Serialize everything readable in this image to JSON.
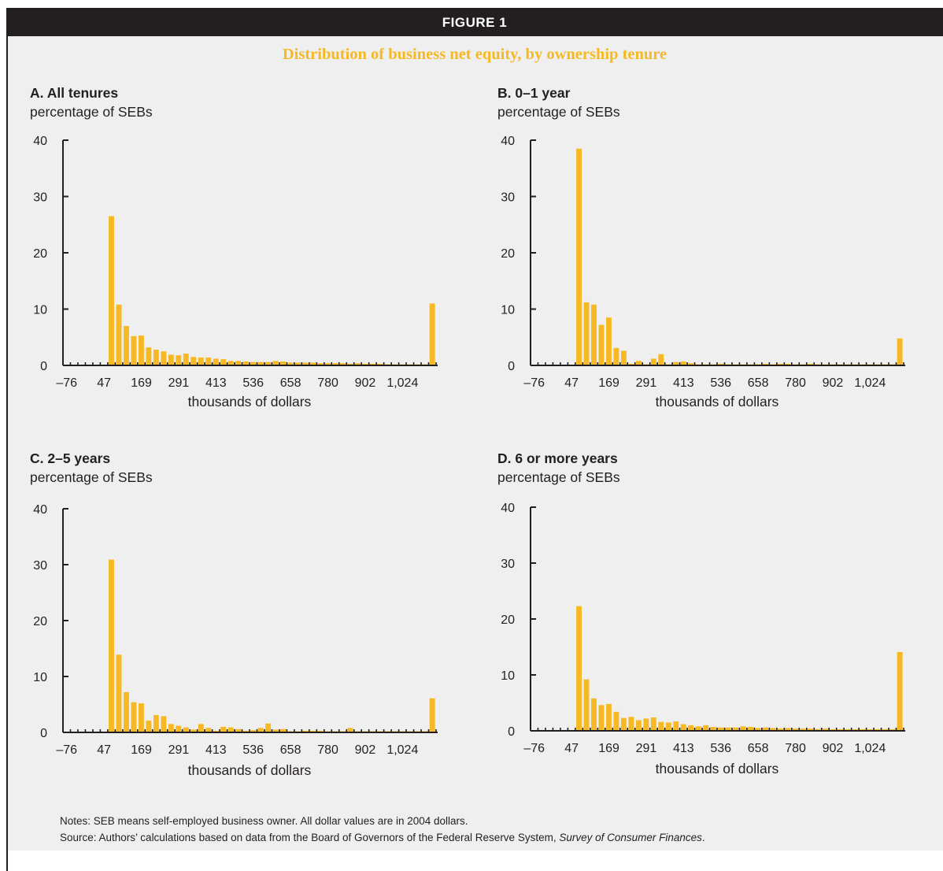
{
  "figure": {
    "header": "FIGURE 1",
    "title": "Distribution of business net equity, by ownership tenure"
  },
  "notes": {
    "line1": "Notes: SEB means self-employed business owner. All dollar values are in 2004 dollars.",
    "line2_prefix": "Source: Authors’ calculations based on data from the Board of Governors of the Federal Reserve System, ",
    "line2_italic": "Survey of Consumer Finances",
    "line2_suffix": "."
  },
  "colors": {
    "bar": "#f7b923",
    "ink": "#231f20",
    "panel_bg": "#efefef",
    "title": "#f7b923"
  },
  "chart_data": [
    {
      "type": "bar",
      "title": "A. All tenures",
      "ylabel": "percentage of SEBs",
      "xlabel": "thousands of dollars",
      "ylim": [
        0,
        40
      ],
      "yticks": [
        0,
        10,
        20,
        30,
        40
      ],
      "xticks": [
        "–76",
        "47",
        "169",
        "291",
        "413",
        "536",
        "658",
        "780",
        "902",
        "1,024"
      ],
      "bins": 50,
      "values": [
        0,
        0,
        0,
        0,
        0,
        0,
        26.5,
        10.8,
        7.0,
        5.2,
        5.3,
        3.2,
        2.8,
        2.5,
        1.9,
        1.8,
        2.1,
        1.5,
        1.4,
        1.4,
        1.2,
        1.1,
        0.8,
        0.8,
        0.7,
        0.6,
        0.6,
        0.6,
        0.8,
        0.7,
        0.5,
        0.5,
        0.5,
        0.5,
        0.4,
        0.4,
        0.4,
        0.4,
        0.3,
        0.4,
        0.3,
        0.3,
        0.3,
        0.2,
        0.2,
        0.2,
        0.2,
        0.2,
        0.2,
        11.0
      ]
    },
    {
      "type": "bar",
      "title": "B. 0–1 year",
      "ylabel": "percentage of SEBs",
      "xlabel": "thousands of dollars",
      "ylim": [
        0,
        40
      ],
      "yticks": [
        0,
        10,
        20,
        30,
        40
      ],
      "xticks": [
        "–76",
        "47",
        "169",
        "291",
        "413",
        "536",
        "658",
        "780",
        "902",
        "1,024"
      ],
      "bins": 50,
      "values": [
        0,
        0,
        0,
        0,
        0,
        0,
        38.5,
        11.2,
        10.8,
        7.2,
        8.5,
        3.1,
        2.6,
        0.3,
        0.8,
        0.2,
        1.2,
        2.0,
        0.2,
        0.6,
        0.7,
        0.4,
        0.2,
        0.2,
        0.2,
        0.3,
        0.2,
        0.2,
        0.2,
        0.2,
        0.2,
        0.3,
        0.2,
        0.3,
        0.3,
        0.2,
        0.2,
        0.3,
        0.2,
        0.2,
        0.2,
        0.2,
        0.2,
        0.2,
        0.2,
        0.2,
        0.2,
        0.2,
        0.2,
        4.8
      ]
    },
    {
      "type": "bar",
      "title": "C. 2–5 years",
      "ylabel": "percentage of SEBs",
      "xlabel": "thousands of dollars",
      "ylim": [
        0,
        40
      ],
      "yticks": [
        0,
        10,
        20,
        30,
        40
      ],
      "xticks": [
        "–76",
        "47",
        "169",
        "291",
        "413",
        "536",
        "658",
        "780",
        "902",
        "1,024"
      ],
      "bins": 50,
      "values": [
        0,
        0,
        0,
        0,
        0,
        0,
        30.9,
        13.9,
        7.2,
        5.4,
        5.2,
        2.1,
        3.1,
        2.9,
        1.5,
        1.2,
        0.9,
        0.5,
        1.5,
        0.8,
        0.3,
        1.0,
        0.9,
        0.6,
        0.3,
        0.4,
        0.8,
        1.6,
        0.5,
        0.6,
        0.2,
        0.2,
        0.3,
        0.3,
        0.3,
        0.2,
        0.2,
        0.2,
        0.8,
        0.2,
        0.2,
        0.2,
        0.2,
        0.2,
        0.2,
        0.2,
        0.2,
        0.2,
        0.2,
        6.1
      ]
    },
    {
      "type": "bar",
      "title": "D. 6 or more years",
      "ylabel": "percentage of SEBs",
      "xlabel": "thousands of dollars",
      "ylim": [
        0,
        40
      ],
      "yticks": [
        0,
        10,
        20,
        30,
        40
      ],
      "xticks": [
        "–76",
        "47",
        "169",
        "291",
        "413",
        "536",
        "658",
        "780",
        "902",
        "1,024"
      ],
      "bins": 50,
      "values": [
        0,
        0,
        0,
        0,
        0,
        0,
        22.3,
        9.2,
        5.8,
        4.6,
        4.8,
        3.4,
        2.3,
        2.5,
        1.9,
        2.2,
        2.4,
        1.6,
        1.5,
        1.7,
        1.2,
        1.0,
        0.8,
        1.0,
        0.7,
        0.6,
        0.6,
        0.6,
        0.8,
        0.7,
        0.5,
        0.6,
        0.5,
        0.4,
        0.5,
        0.4,
        0.4,
        0.4,
        0.3,
        0.4,
        0.3,
        0.3,
        0.3,
        0.3,
        0.3,
        0.3,
        0.3,
        0.3,
        0.3,
        14.1
      ]
    }
  ]
}
